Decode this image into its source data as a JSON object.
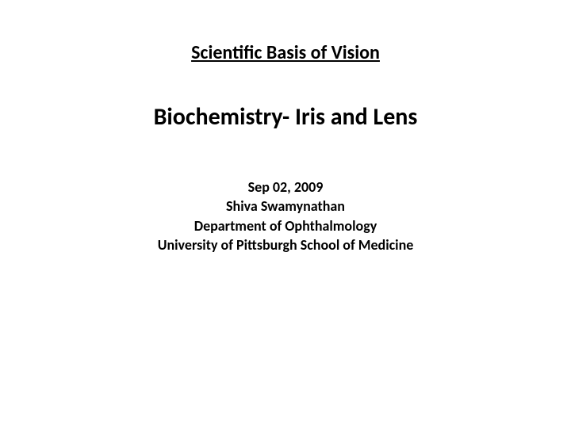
{
  "slide": {
    "course_title": "Scientific Basis of Vision",
    "lecture_title": "Biochemistry- Iris and Lens",
    "date": "Sep 02, 2009",
    "speaker": "Shiva Swamynathan",
    "department": "Department of Ophthalmology",
    "institution": "University of Pittsburgh School of Medicine",
    "background_color": "#ffffff",
    "text_color": "#000000",
    "course_title_fontsize": 24,
    "lecture_title_fontsize": 30,
    "details_fontsize": 18,
    "font_family": "Calibri",
    "font_weight": "bold"
  }
}
